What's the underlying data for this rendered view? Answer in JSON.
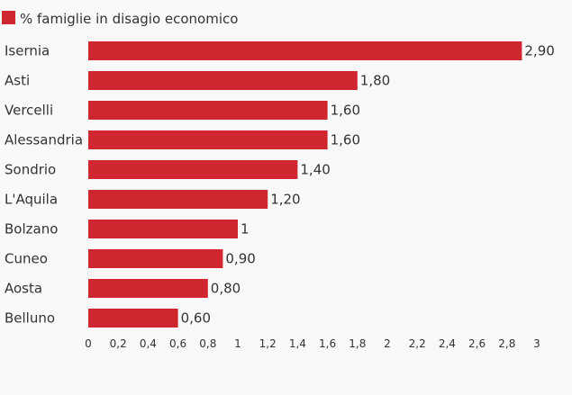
{
  "chart_data": {
    "type": "bar",
    "orientation": "horizontal",
    "legend": {
      "label": "% famiglie in disagio economico",
      "color": "#d0262f",
      "placement": "top-left"
    },
    "categories": [
      "Isernia",
      "Asti",
      "Vercelli",
      "Alessandria",
      "Sondrio",
      "L'Aquila",
      "Bolzano",
      "Cuneo",
      "Aosta",
      "Belluno"
    ],
    "values": [
      2.9,
      1.8,
      1.6,
      1.6,
      1.4,
      1.2,
      1.0,
      0.9,
      0.8,
      0.6
    ],
    "value_labels": [
      "2,90",
      "1,80",
      "1,60",
      "1,60",
      "1,40",
      "1,20",
      "1",
      "0,90",
      "0,80",
      "0,60"
    ],
    "xlim": [
      0,
      3
    ],
    "x_ticks": [
      0,
      0.2,
      0.4,
      0.6,
      0.8,
      1,
      1.2,
      1.4,
      1.6,
      1.8,
      2,
      2.2,
      2.4,
      2.6,
      2.8,
      3
    ],
    "x_tick_labels": [
      "0",
      "0,2",
      "0,4",
      "0,6",
      "0,8",
      "1",
      "1,2",
      "1,4",
      "1,6",
      "1,8",
      "2",
      "2,2",
      "2,4",
      "2,6",
      "2,8",
      "3"
    ],
    "grid": false,
    "bar_color": "#d0262f"
  }
}
